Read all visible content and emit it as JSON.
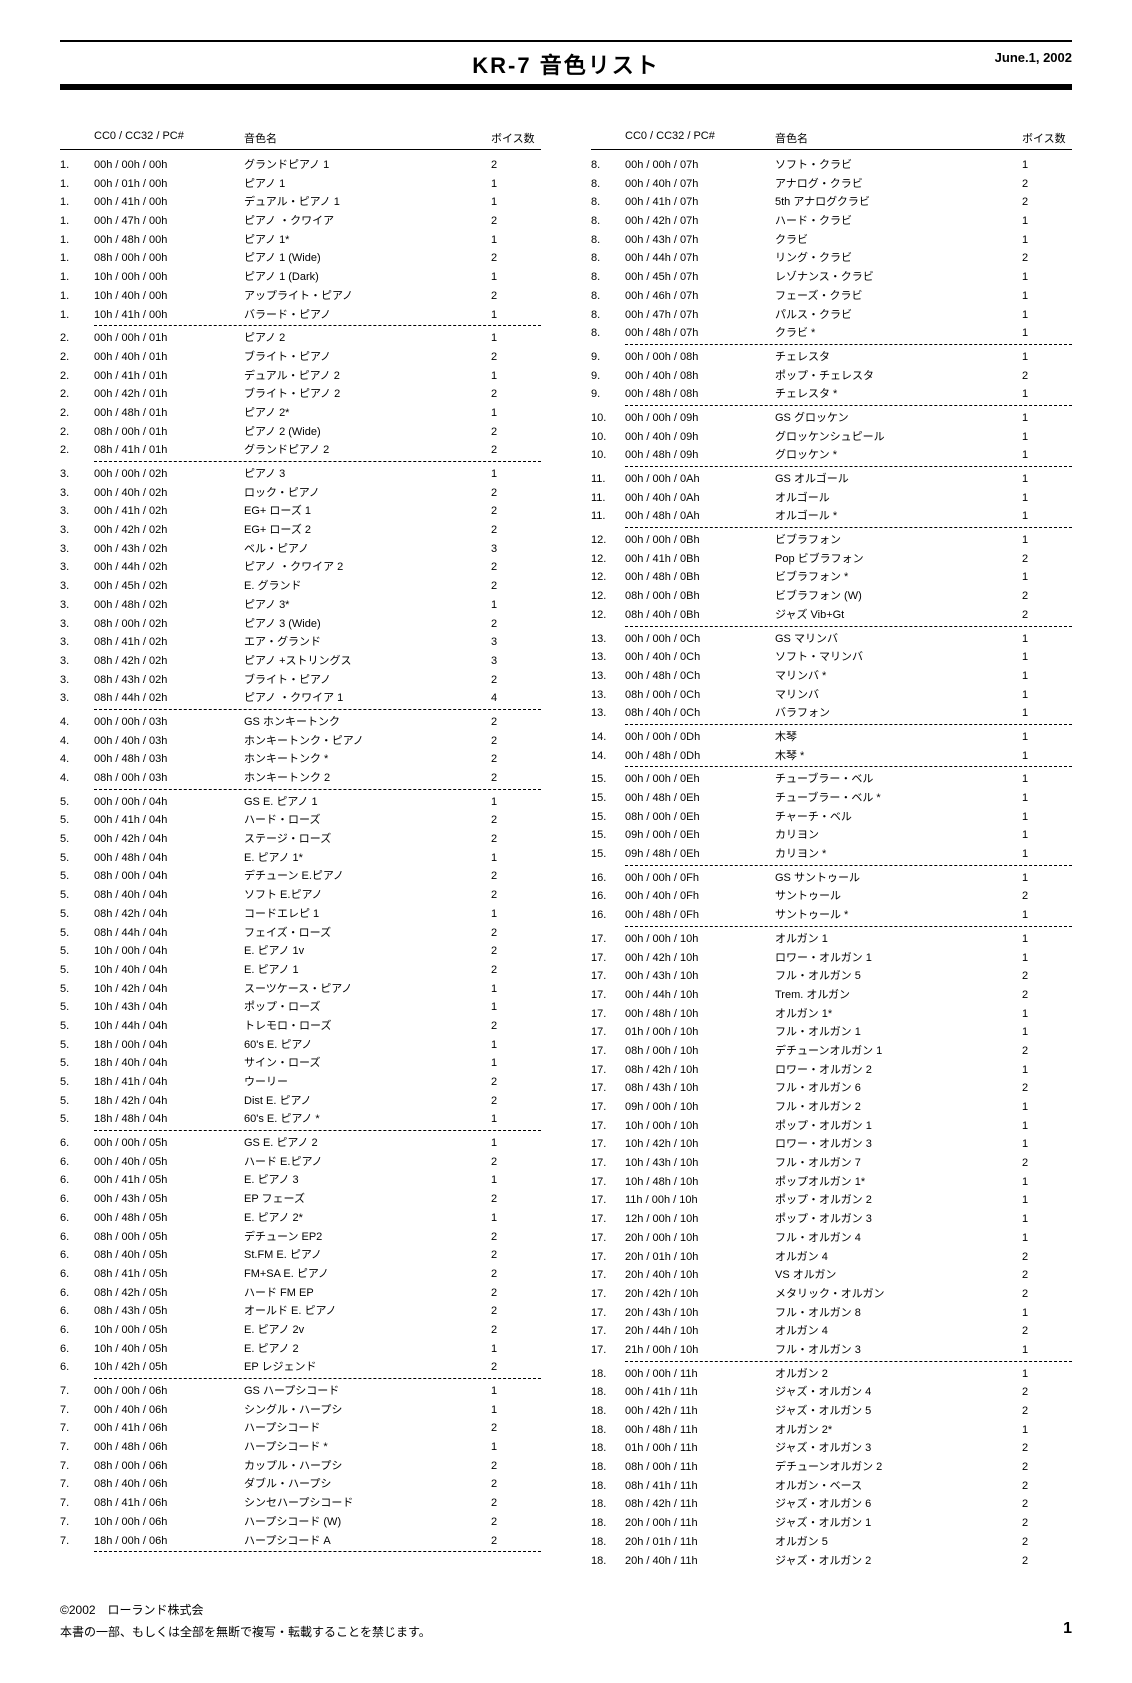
{
  "header": {
    "title": "KR-7  音色リスト",
    "date": "June.1, 2002"
  },
  "columns": {
    "headers": {
      "idx": "",
      "cc": "CC0 / CC32 / PC#",
      "name": "音色名",
      "voices": "ボイス数"
    }
  },
  "footer": {
    "copyright": "©2002　ローランド株式会",
    "notice": "本書の一部、もしくは全部を無断で複写・転載することを禁じます。",
    "page": "1"
  },
  "left": [
    {
      "g": 1,
      "rows": [
        {
          "cc": "00h / 00h / 00h",
          "n": "グランドピアノ 1",
          "v": "2"
        },
        {
          "cc": "00h / 01h / 00h",
          "n": "ピアノ 1",
          "v": "1"
        },
        {
          "cc": "00h / 41h / 00h",
          "n": "デュアル・ピアノ 1",
          "v": "1"
        },
        {
          "cc": "00h / 47h / 00h",
          "n": "ピアノ ・クワイア",
          "v": "2"
        },
        {
          "cc": "00h / 48h / 00h",
          "n": "ピアノ 1*",
          "v": "1"
        },
        {
          "cc": "08h / 00h / 00h",
          "n": "ピアノ 1 (Wide)",
          "v": "2"
        },
        {
          "cc": "10h / 00h / 00h",
          "n": "ピアノ 1 (Dark)",
          "v": "1"
        },
        {
          "cc": "10h / 40h / 00h",
          "n": "アップライト・ピアノ",
          "v": "2"
        },
        {
          "cc": "10h / 41h / 00h",
          "n": "バラード・ピアノ",
          "v": "1"
        }
      ]
    },
    {
      "g": 2,
      "rows": [
        {
          "cc": "00h / 00h / 01h",
          "n": "ピアノ 2",
          "v": "1"
        },
        {
          "cc": "00h / 40h / 01h",
          "n": "ブライト・ピアノ",
          "v": "2"
        },
        {
          "cc": "00h / 41h / 01h",
          "n": "デュアル・ピアノ 2",
          "v": "1"
        },
        {
          "cc": "00h / 42h / 01h",
          "n": "ブライト・ピアノ 2",
          "v": "2"
        },
        {
          "cc": "00h / 48h / 01h",
          "n": "ピアノ 2*",
          "v": "1"
        },
        {
          "cc": "08h / 00h / 01h",
          "n": "ピアノ 2 (Wide)",
          "v": "2"
        },
        {
          "cc": "08h / 41h / 01h",
          "n": "グランドピアノ 2",
          "v": "2"
        }
      ]
    },
    {
      "g": 3,
      "rows": [
        {
          "cc": "00h / 00h / 02h",
          "n": "ピアノ 3",
          "v": "1"
        },
        {
          "cc": "00h / 40h / 02h",
          "n": "ロック・ピアノ",
          "v": "2"
        },
        {
          "cc": "00h / 41h / 02h",
          "n": "EG+ ローズ 1",
          "v": "2"
        },
        {
          "cc": "00h / 42h / 02h",
          "n": "EG+ ローズ 2",
          "v": "2"
        },
        {
          "cc": "00h / 43h / 02h",
          "n": "ベル・ピアノ",
          "v": "3"
        },
        {
          "cc": "00h / 44h / 02h",
          "n": "ピアノ ・クワイア 2",
          "v": "2"
        },
        {
          "cc": "00h / 45h / 02h",
          "n": "E. グランド",
          "v": "2"
        },
        {
          "cc": "00h / 48h / 02h",
          "n": "ピアノ 3*",
          "v": "1"
        },
        {
          "cc": "08h / 00h / 02h",
          "n": "ピアノ 3 (Wide)",
          "v": "2"
        },
        {
          "cc": "08h / 41h / 02h",
          "n": "エア・グランド",
          "v": "3"
        },
        {
          "cc": "08h / 42h / 02h",
          "n": "ピアノ  +ストリングス",
          "v": "3"
        },
        {
          "cc": "08h / 43h / 02h",
          "n": "ブライト・ピアノ",
          "v": "2"
        },
        {
          "cc": "08h / 44h / 02h",
          "n": "ピアノ ・クワイア 1",
          "v": "4"
        }
      ]
    },
    {
      "g": 4,
      "rows": [
        {
          "cc": "00h / 00h / 03h",
          "n": "GS ホンキートンク",
          "v": "2"
        },
        {
          "cc": "00h / 40h / 03h",
          "n": "ホンキートンク・ピアノ",
          "v": "2"
        },
        {
          "cc": "00h / 48h / 03h",
          "n": "ホンキートンク *",
          "v": "2"
        },
        {
          "cc": "08h / 00h / 03h",
          "n": "ホンキートンク 2",
          "v": "2"
        }
      ]
    },
    {
      "g": 5,
      "rows": [
        {
          "cc": "00h / 00h / 04h",
          "n": "GS E. ピアノ 1",
          "v": "1"
        },
        {
          "cc": "00h / 41h / 04h",
          "n": "ハード・ローズ",
          "v": "2"
        },
        {
          "cc": "00h / 42h / 04h",
          "n": "ステージ・ローズ",
          "v": "2"
        },
        {
          "cc": "00h / 48h / 04h",
          "n": "E. ピアノ 1*",
          "v": "1"
        },
        {
          "cc": "08h / 00h / 04h",
          "n": "デチューン E.ピアノ",
          "v": "2"
        },
        {
          "cc": "08h / 40h / 04h",
          "n": "ソフト E.ピアノ",
          "v": "2"
        },
        {
          "cc": "08h / 42h / 04h",
          "n": "コードエレピ 1",
          "v": "1"
        },
        {
          "cc": "08h / 44h / 04h",
          "n": "フェイズ・ローズ",
          "v": "2"
        },
        {
          "cc": "10h / 00h / 04h",
          "n": "E. ピアノ 1v",
          "v": "2"
        },
        {
          "cc": "10h / 40h / 04h",
          "n": "E. ピアノ 1",
          "v": "2"
        },
        {
          "cc": "10h / 42h / 04h",
          "n": "スーツケース・ピアノ",
          "v": "1"
        },
        {
          "cc": "10h / 43h / 04h",
          "n": "ポップ・ローズ",
          "v": "1"
        },
        {
          "cc": "10h / 44h / 04h",
          "n": "トレモロ・ローズ",
          "v": "2"
        },
        {
          "cc": "18h / 00h / 04h",
          "n": "60's E. ピアノ",
          "v": "1"
        },
        {
          "cc": "18h / 40h / 04h",
          "n": "サイン・ローズ",
          "v": "1"
        },
        {
          "cc": "18h / 41h / 04h",
          "n": "ウーリー",
          "v": "2"
        },
        {
          "cc": "18h / 42h / 04h",
          "n": "Dist E. ピアノ",
          "v": "2"
        },
        {
          "cc": "18h / 48h / 04h",
          "n": "60's E. ピアノ *",
          "v": "1"
        }
      ]
    },
    {
      "g": 6,
      "rows": [
        {
          "cc": "00h / 00h / 05h",
          "n": "GS E. ピアノ 2",
          "v": "1"
        },
        {
          "cc": "00h / 40h / 05h",
          "n": "ハード E.ピアノ",
          "v": "2"
        },
        {
          "cc": "00h / 41h / 05h",
          "n": "E. ピアノ 3",
          "v": "1"
        },
        {
          "cc": "00h / 43h / 05h",
          "n": "EP フェーズ",
          "v": "2"
        },
        {
          "cc": "00h / 48h / 05h",
          "n": "E. ピアノ 2*",
          "v": "1"
        },
        {
          "cc": "08h / 00h / 05h",
          "n": "デチューン EP2",
          "v": "2"
        },
        {
          "cc": "08h / 40h / 05h",
          "n": "St.FM E. ピアノ",
          "v": "2"
        },
        {
          "cc": "08h / 41h / 05h",
          "n": "FM+SA E. ピアノ",
          "v": "2"
        },
        {
          "cc": "08h / 42h / 05h",
          "n": "ハード FM EP",
          "v": "2"
        },
        {
          "cc": "08h / 43h / 05h",
          "n": "オールド E. ピアノ",
          "v": "2"
        },
        {
          "cc": "10h / 00h / 05h",
          "n": "E. ピアノ 2v",
          "v": "2"
        },
        {
          "cc": "10h / 40h / 05h",
          "n": "E. ピアノ 2",
          "v": "1"
        },
        {
          "cc": "10h / 42h / 05h",
          "n": "EP レジェンド",
          "v": "2"
        }
      ]
    },
    {
      "g": 7,
      "rows": [
        {
          "cc": "00h / 00h / 06h",
          "n": "GS ハープシコード",
          "v": "1"
        },
        {
          "cc": "00h / 40h / 06h",
          "n": "シングル・ハープシ",
          "v": "1"
        },
        {
          "cc": "00h / 41h / 06h",
          "n": "ハープシコード",
          "v": "2"
        },
        {
          "cc": "00h / 48h / 06h",
          "n": "ハープシコード *",
          "v": "1"
        },
        {
          "cc": "08h / 00h / 06h",
          "n": "カップル・ハープシ",
          "v": "2"
        },
        {
          "cc": "08h / 40h / 06h",
          "n": "ダブル・ハープシ",
          "v": "2"
        },
        {
          "cc": "08h / 41h / 06h",
          "n": "シンセハープシコード",
          "v": "2"
        },
        {
          "cc": "10h / 00h / 06h",
          "n": "ハープシコード (W)",
          "v": "2"
        },
        {
          "cc": "18h / 00h / 06h",
          "n": "ハープシコード A",
          "v": "2"
        }
      ]
    }
  ],
  "right": [
    {
      "g": 8,
      "rows": [
        {
          "cc": "00h / 00h / 07h",
          "n": "ソフト・クラビ",
          "v": "1"
        },
        {
          "cc": "00h / 40h / 07h",
          "n": "アナログ・クラビ",
          "v": "2"
        },
        {
          "cc": "00h / 41h / 07h",
          "n": "5th アナログクラビ",
          "v": "2"
        },
        {
          "cc": "00h / 42h / 07h",
          "n": "ハード・クラビ",
          "v": "1"
        },
        {
          "cc": "00h / 43h / 07h",
          "n": "クラビ",
          "v": "1"
        },
        {
          "cc": "00h / 44h / 07h",
          "n": "リング・クラビ",
          "v": "2"
        },
        {
          "cc": "00h / 45h / 07h",
          "n": "レゾナンス・クラビ",
          "v": "1"
        },
        {
          "cc": "00h / 46h / 07h",
          "n": "フェーズ・クラビ",
          "v": "1"
        },
        {
          "cc": "00h / 47h / 07h",
          "n": "パルス・クラビ",
          "v": "1"
        },
        {
          "cc": "00h / 48h / 07h",
          "n": "クラビ *",
          "v": "1"
        }
      ]
    },
    {
      "g": 9,
      "rows": [
        {
          "cc": "00h / 00h / 08h",
          "n": "チェレスタ",
          "v": "1"
        },
        {
          "cc": "00h / 40h / 08h",
          "n": "ポップ・チェレスタ",
          "v": "2"
        },
        {
          "cc": "00h / 48h / 08h",
          "n": "チェレスタ *",
          "v": "1"
        }
      ]
    },
    {
      "g": 10,
      "rows": [
        {
          "cc": "00h / 00h / 09h",
          "n": "GS グロッケン",
          "v": "1"
        },
        {
          "cc": "00h / 40h / 09h",
          "n": "グロッケンシュピール",
          "v": "1"
        },
        {
          "cc": "00h / 48h / 09h",
          "n": "グロッケン *",
          "v": "1"
        }
      ]
    },
    {
      "g": 11,
      "rows": [
        {
          "cc": "00h / 00h / 0Ah",
          "n": "GS オルゴール",
          "v": "1"
        },
        {
          "cc": "00h / 40h / 0Ah",
          "n": "オルゴール",
          "v": "1"
        },
        {
          "cc": "00h / 48h / 0Ah",
          "n": "オルゴール *",
          "v": "1"
        }
      ]
    },
    {
      "g": 12,
      "rows": [
        {
          "cc": "00h / 00h / 0Bh",
          "n": "ビブラフォン",
          "v": "1"
        },
        {
          "cc": "00h / 41h / 0Bh",
          "n": "Pop ビブラフォン",
          "v": "2"
        },
        {
          "cc": "00h / 48h / 0Bh",
          "n": "ビブラフォン *",
          "v": "1"
        },
        {
          "cc": "08h / 00h / 0Bh",
          "n": "ビブラフォン (W)",
          "v": "2"
        },
        {
          "cc": "08h / 40h / 0Bh",
          "n": "ジャズ Vib+Gt",
          "v": "2"
        }
      ]
    },
    {
      "g": 13,
      "rows": [
        {
          "cc": "00h / 00h / 0Ch",
          "n": "GS マリンバ",
          "v": "1"
        },
        {
          "cc": "00h / 40h / 0Ch",
          "n": "ソフト・マリンバ",
          "v": "1"
        },
        {
          "cc": "00h / 48h / 0Ch",
          "n": "マリンバ *",
          "v": "1"
        },
        {
          "cc": "08h / 00h / 0Ch",
          "n": "マリンバ",
          "v": "1"
        },
        {
          "cc": "08h / 40h / 0Ch",
          "n": "バラフォン",
          "v": "1"
        }
      ]
    },
    {
      "g": 14,
      "rows": [
        {
          "cc": "00h / 00h / 0Dh",
          "n": "木琴",
          "v": "1"
        },
        {
          "cc": "00h / 48h / 0Dh",
          "n": "木琴 *",
          "v": "1"
        }
      ]
    },
    {
      "g": 15,
      "rows": [
        {
          "cc": "00h / 00h / 0Eh",
          "n": "チューブラー・ベル",
          "v": "1"
        },
        {
          "cc": "00h / 48h / 0Eh",
          "n": "チューブラー・ベル *",
          "v": "1"
        },
        {
          "cc": "08h / 00h / 0Eh",
          "n": "チャーチ・ベル",
          "v": "1"
        },
        {
          "cc": "09h / 00h / 0Eh",
          "n": "カリヨン",
          "v": "1"
        },
        {
          "cc": "09h / 48h / 0Eh",
          "n": "カリヨン *",
          "v": "1"
        }
      ]
    },
    {
      "g": 16,
      "rows": [
        {
          "cc": "00h / 00h / 0Fh",
          "n": "GS サントゥール",
          "v": "1"
        },
        {
          "cc": "00h / 40h / 0Fh",
          "n": "サントゥール",
          "v": "2"
        },
        {
          "cc": "00h / 48h / 0Fh",
          "n": "サントゥール *",
          "v": "1"
        }
      ]
    },
    {
      "g": 17,
      "rows": [
        {
          "cc": "00h / 00h / 10h",
          "n": "オルガン 1",
          "v": "1"
        },
        {
          "cc": "00h / 42h / 10h",
          "n": "ロワー・オルガン 1",
          "v": "1"
        },
        {
          "cc": "00h / 43h / 10h",
          "n": "フル・オルガン 5",
          "v": "2"
        },
        {
          "cc": "00h / 44h / 10h",
          "n": "Trem. オルガン",
          "v": "2"
        },
        {
          "cc": "00h / 48h / 10h",
          "n": "オルガン 1*",
          "v": "1"
        },
        {
          "cc": "01h / 00h / 10h",
          "n": "フル・オルガン 1",
          "v": "1"
        },
        {
          "cc": "08h / 00h / 10h",
          "n": "デチューンオルガン 1",
          "v": "2"
        },
        {
          "cc": "08h / 42h / 10h",
          "n": "ロワー・オルガン 2",
          "v": "1"
        },
        {
          "cc": "08h / 43h / 10h",
          "n": "フル・オルガン 6",
          "v": "2"
        },
        {
          "cc": "09h / 00h / 10h",
          "n": "フル・オルガン 2",
          "v": "1"
        },
        {
          "cc": "10h / 00h / 10h",
          "n": "ポップ・オルガン 1",
          "v": "1"
        },
        {
          "cc": "10h / 42h / 10h",
          "n": "ロワー・オルガン 3",
          "v": "1"
        },
        {
          "cc": "10h / 43h / 10h",
          "n": "フル・オルガン 7",
          "v": "2"
        },
        {
          "cc": "10h / 48h / 10h",
          "n": "ポップオルガン 1*",
          "v": "1"
        },
        {
          "cc": "11h / 00h / 10h",
          "n": "ポップ・オルガン 2",
          "v": "1"
        },
        {
          "cc": "12h / 00h / 10h",
          "n": "ポップ・オルガン 3",
          "v": "1"
        },
        {
          "cc": "20h / 00h / 10h",
          "n": "フル・オルガン 4",
          "v": "1"
        },
        {
          "cc": "20h / 01h / 10h",
          "n": "オルガン 4",
          "v": "2"
        },
        {
          "cc": "20h / 40h / 10h",
          "n": "VS オルガン",
          "v": "2"
        },
        {
          "cc": "20h / 42h / 10h",
          "n": "メタリック・オルガン",
          "v": "2"
        },
        {
          "cc": "20h / 43h / 10h",
          "n": "フル・オルガン 8",
          "v": "1"
        },
        {
          "cc": "20h / 44h / 10h",
          "n": "オルガン 4",
          "v": "2"
        },
        {
          "cc": "21h / 00h / 10h",
          "n": "フル・オルガン 3",
          "v": "1"
        }
      ]
    },
    {
      "g": 18,
      "rows": [
        {
          "cc": "00h / 00h / 11h",
          "n": "オルガン 2",
          "v": "1"
        },
        {
          "cc": "00h / 41h / 11h",
          "n": "ジャズ・オルガン 4",
          "v": "2"
        },
        {
          "cc": "00h / 42h / 11h",
          "n": "ジャズ・オルガン 5",
          "v": "2"
        },
        {
          "cc": "00h / 48h / 11h",
          "n": "オルガン 2*",
          "v": "1"
        },
        {
          "cc": "01h / 00h / 11h",
          "n": "ジャズ・オルガン 3",
          "v": "2"
        },
        {
          "cc": "08h / 00h / 11h",
          "n": "デチューンオルガン 2",
          "v": "2"
        },
        {
          "cc": "08h / 41h / 11h",
          "n": "オルガン・ベース",
          "v": "2"
        },
        {
          "cc": "08h / 42h / 11h",
          "n": "ジャズ・オルガン 6",
          "v": "2"
        },
        {
          "cc": "20h / 00h / 11h",
          "n": "ジャズ・オルガン 1",
          "v": "2"
        },
        {
          "cc": "20h / 01h / 11h",
          "n": "オルガン 5",
          "v": "2"
        },
        {
          "cc": "20h / 40h / 11h",
          "n": "ジャズ・オルガン 2",
          "v": "2"
        }
      ]
    }
  ]
}
